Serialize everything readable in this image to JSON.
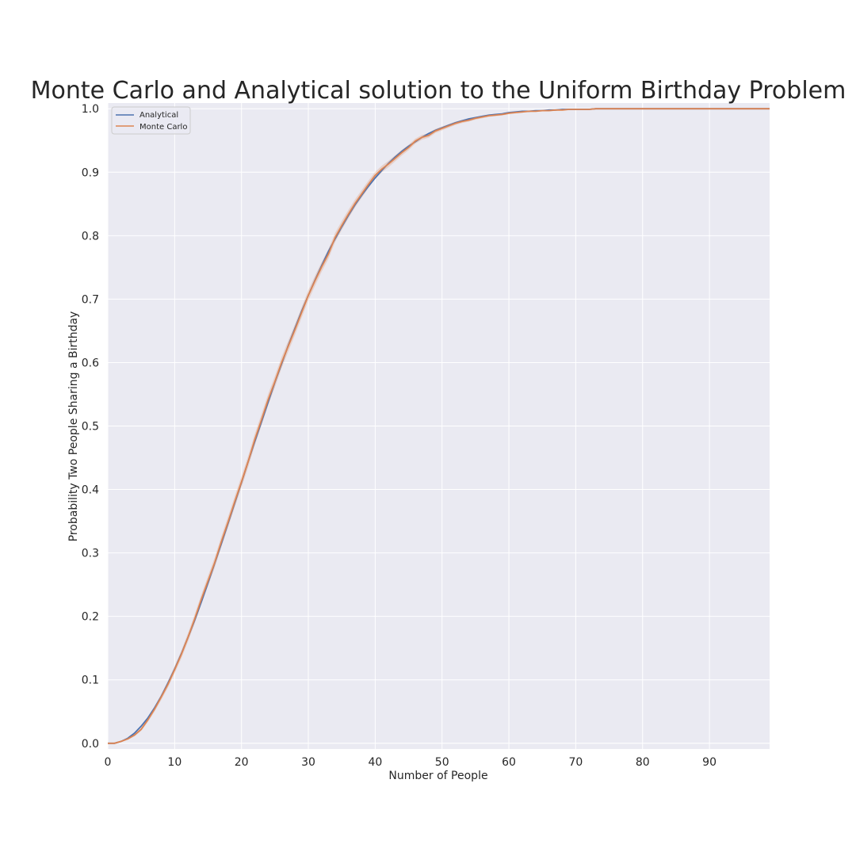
{
  "chart_data": {
    "type": "line",
    "title": "Monte Carlo and Analytical solution to the Uniform Birthday Problem",
    "xlabel": "Number of People",
    "ylabel": "Probability Two People Sharing a Birthday",
    "xlim": [
      0,
      99
    ],
    "ylim": [
      -0.009,
      1.009
    ],
    "xticks": [
      0,
      10,
      20,
      30,
      40,
      50,
      60,
      70,
      80,
      90
    ],
    "xtick_labels": [
      "0",
      "10",
      "20",
      "30",
      "40",
      "50",
      "60",
      "70",
      "80",
      "90"
    ],
    "yticks": [
      0.0,
      0.1,
      0.2,
      0.3,
      0.4,
      0.5,
      0.6,
      0.7,
      0.8,
      0.9,
      1.0
    ],
    "ytick_labels": [
      "0.0",
      "0.1",
      "0.2",
      "0.3",
      "0.4",
      "0.5",
      "0.6",
      "0.7",
      "0.8",
      "0.9",
      "1.0"
    ],
    "grid": true,
    "legend_position": "top-left",
    "colors": {
      "background": "#eaeaf2",
      "grid": "#ffffff",
      "analytical": "#4c72b0",
      "monte_carlo": "#dd8452",
      "band": "#dd8452"
    },
    "x": [
      0,
      1,
      2,
      3,
      4,
      5,
      6,
      7,
      8,
      9,
      10,
      11,
      12,
      13,
      14,
      15,
      16,
      17,
      18,
      19,
      20,
      21,
      22,
      23,
      24,
      25,
      26,
      27,
      28,
      29,
      30,
      31,
      32,
      33,
      34,
      35,
      36,
      37,
      38,
      39,
      40,
      41,
      42,
      43,
      44,
      45,
      46,
      47,
      48,
      49,
      50,
      51,
      52,
      53,
      54,
      55,
      56,
      57,
      58,
      59,
      60,
      61,
      62,
      63,
      64,
      65,
      66,
      67,
      68,
      69,
      70,
      71,
      72,
      73,
      74,
      75,
      76,
      77,
      78,
      79,
      80,
      81,
      82,
      83,
      84,
      85,
      86,
      87,
      88,
      89,
      90,
      91,
      92,
      93,
      94,
      95,
      96,
      97,
      98,
      99
    ],
    "series": [
      {
        "name": "Analytical",
        "values": [
          0,
          0,
          0.003,
          0.008,
          0.016,
          0.027,
          0.04,
          0.056,
          0.074,
          0.095,
          0.117,
          0.141,
          0.167,
          0.194,
          0.223,
          0.253,
          0.284,
          0.315,
          0.347,
          0.379,
          0.411,
          0.444,
          0.476,
          0.507,
          0.538,
          0.569,
          0.598,
          0.627,
          0.654,
          0.681,
          0.706,
          0.73,
          0.753,
          0.775,
          0.795,
          0.814,
          0.832,
          0.849,
          0.864,
          0.878,
          0.891,
          0.903,
          0.914,
          0.924,
          0.933,
          0.941,
          0.948,
          0.955,
          0.961,
          0.966,
          0.97,
          0.974,
          0.978,
          0.981,
          0.984,
          0.986,
          0.988,
          0.99,
          0.991,
          0.992,
          0.994,
          0.995,
          0.996,
          0.996,
          0.997,
          0.997,
          0.998,
          0.998,
          0.999,
          0.999,
          0.999,
          0.999,
          0.999,
          1,
          1,
          1,
          1,
          1,
          1,
          1,
          1,
          1,
          1,
          1,
          1,
          1,
          1,
          1,
          1,
          1,
          1,
          1,
          1,
          1,
          1,
          1,
          1,
          1,
          1,
          1
        ]
      },
      {
        "name": "Monte Carlo",
        "values": [
          0,
          0,
          0.003,
          0.007,
          0.013,
          0.022,
          0.037,
          0.054,
          0.073,
          0.093,
          0.116,
          0.14,
          0.167,
          0.196,
          0.227,
          0.256,
          0.285,
          0.318,
          0.349,
          0.381,
          0.412,
          0.444,
          0.479,
          0.51,
          0.542,
          0.57,
          0.6,
          0.626,
          0.652,
          0.679,
          0.706,
          0.729,
          0.751,
          0.771,
          0.797,
          0.816,
          0.834,
          0.851,
          0.866,
          0.881,
          0.895,
          0.905,
          0.913,
          0.922,
          0.931,
          0.939,
          0.949,
          0.955,
          0.958,
          0.965,
          0.969,
          0.973,
          0.977,
          0.98,
          0.982,
          0.985,
          0.987,
          0.989,
          0.99,
          0.991,
          0.993,
          0.994,
          0.995,
          0.996,
          0.996,
          0.997,
          0.997,
          0.998,
          0.998,
          0.999,
          0.999,
          0.999,
          0.999,
          1,
          1,
          1,
          1,
          1,
          1,
          1,
          1,
          1,
          1,
          1,
          1,
          1,
          1,
          1,
          1,
          1,
          1,
          1,
          1,
          1,
          1,
          1,
          1,
          1,
          1,
          1
        ],
        "band_halfwidth": 0.009
      }
    ]
  }
}
